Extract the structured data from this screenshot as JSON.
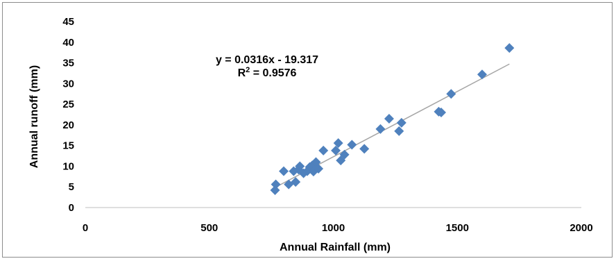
{
  "chart_data": {
    "type": "scatter",
    "xlabel": "Annual Rainfall (mm)",
    "ylabel": "Annual runoff (mm)",
    "xlim": [
      0,
      2000
    ],
    "ylim": [
      0,
      45
    ],
    "x_ticks": [
      0,
      500,
      1000,
      1500,
      2000
    ],
    "y_ticks": [
      0,
      5,
      10,
      15,
      20,
      25,
      30,
      35,
      40,
      45
    ],
    "grid": false,
    "marker": "diamond",
    "marker_color": "#4f81bd",
    "trendline": {
      "slope": 0.0316,
      "intercept": -19.317,
      "x_range": [
        770,
        1710
      ],
      "color": "#a6a6a6",
      "equation_label": "y = 0.0316x - 19.317",
      "r2_prefix": "R",
      "r2_superscript": "2",
      "r2_value": " = 0.9576"
    },
    "points": [
      {
        "x": 765,
        "y": 4.2
      },
      {
        "x": 768,
        "y": 5.6
      },
      {
        "x": 800,
        "y": 8.8
      },
      {
        "x": 820,
        "y": 5.6
      },
      {
        "x": 840,
        "y": 8.8
      },
      {
        "x": 848,
        "y": 6.2
      },
      {
        "x": 860,
        "y": 9.2
      },
      {
        "x": 865,
        "y": 10.0
      },
      {
        "x": 880,
        "y": 8.3
      },
      {
        "x": 895,
        "y": 8.8
      },
      {
        "x": 905,
        "y": 9.8
      },
      {
        "x": 915,
        "y": 10.2
      },
      {
        "x": 920,
        "y": 8.7
      },
      {
        "x": 930,
        "y": 11.0
      },
      {
        "x": 940,
        "y": 9.4
      },
      {
        "x": 960,
        "y": 13.8
      },
      {
        "x": 1010,
        "y": 13.8
      },
      {
        "x": 1020,
        "y": 15.6
      },
      {
        "x": 1030,
        "y": 11.4
      },
      {
        "x": 1045,
        "y": 12.8
      },
      {
        "x": 1075,
        "y": 15.2
      },
      {
        "x": 1125,
        "y": 14.2
      },
      {
        "x": 1190,
        "y": 19.0
      },
      {
        "x": 1225,
        "y": 21.5
      },
      {
        "x": 1265,
        "y": 18.5
      },
      {
        "x": 1275,
        "y": 20.5
      },
      {
        "x": 1425,
        "y": 23.2
      },
      {
        "x": 1435,
        "y": 23.0
      },
      {
        "x": 1475,
        "y": 27.5
      },
      {
        "x": 1600,
        "y": 32.2
      },
      {
        "x": 1710,
        "y": 38.6
      }
    ]
  }
}
